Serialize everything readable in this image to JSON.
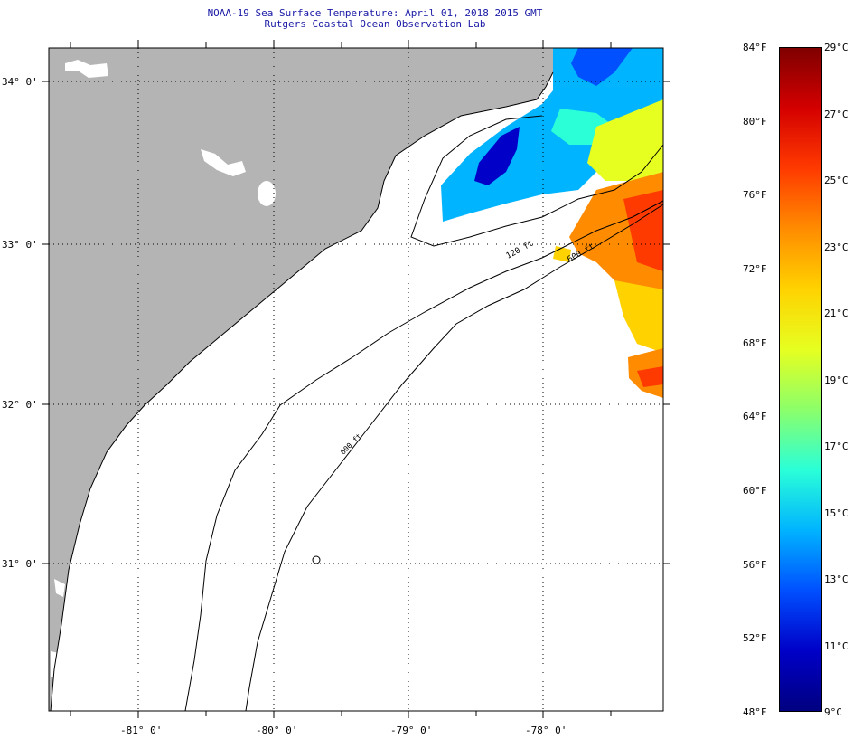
{
  "header": {
    "line1": "NOAA-19 Sea Surface Temperature:  April 01, 2018 2015 GMT",
    "line2": "Rutgers Coastal Ocean Observation Lab"
  },
  "map": {
    "lat_labels": [
      "34° 0'",
      "33° 0'",
      "32° 0'",
      "31° 0'"
    ],
    "lon_labels": [
      "-81° 0'",
      "-80° 0'",
      "-79° 0'",
      "-78° 0'"
    ],
    "isobath_labels": [
      "120 ft",
      "600 ft",
      "600 ft"
    ],
    "colors": {
      "land": "#b4b4b4",
      "ocean": "#ffffff",
      "grid": "#000000"
    }
  },
  "colorbar": {
    "fahrenheit": [
      "84°F",
      "80°F",
      "76°F",
      "72°F",
      "68°F",
      "64°F",
      "60°F",
      "56°F",
      "52°F",
      "48°F"
    ],
    "celsius": [
      "29°C",
      "27°C",
      "25°C",
      "23°C",
      "21°C",
      "19°C",
      "17°C",
      "15°C",
      "13°C",
      "11°C",
      "9°C"
    ],
    "stops": [
      "#7f0000",
      "#d40000",
      "#ff3a00",
      "#ff8c00",
      "#ffd200",
      "#e6ff20",
      "#8cff6a",
      "#2affd8",
      "#00b4ff",
      "#0050ff",
      "#0000c8",
      "#000080"
    ]
  }
}
